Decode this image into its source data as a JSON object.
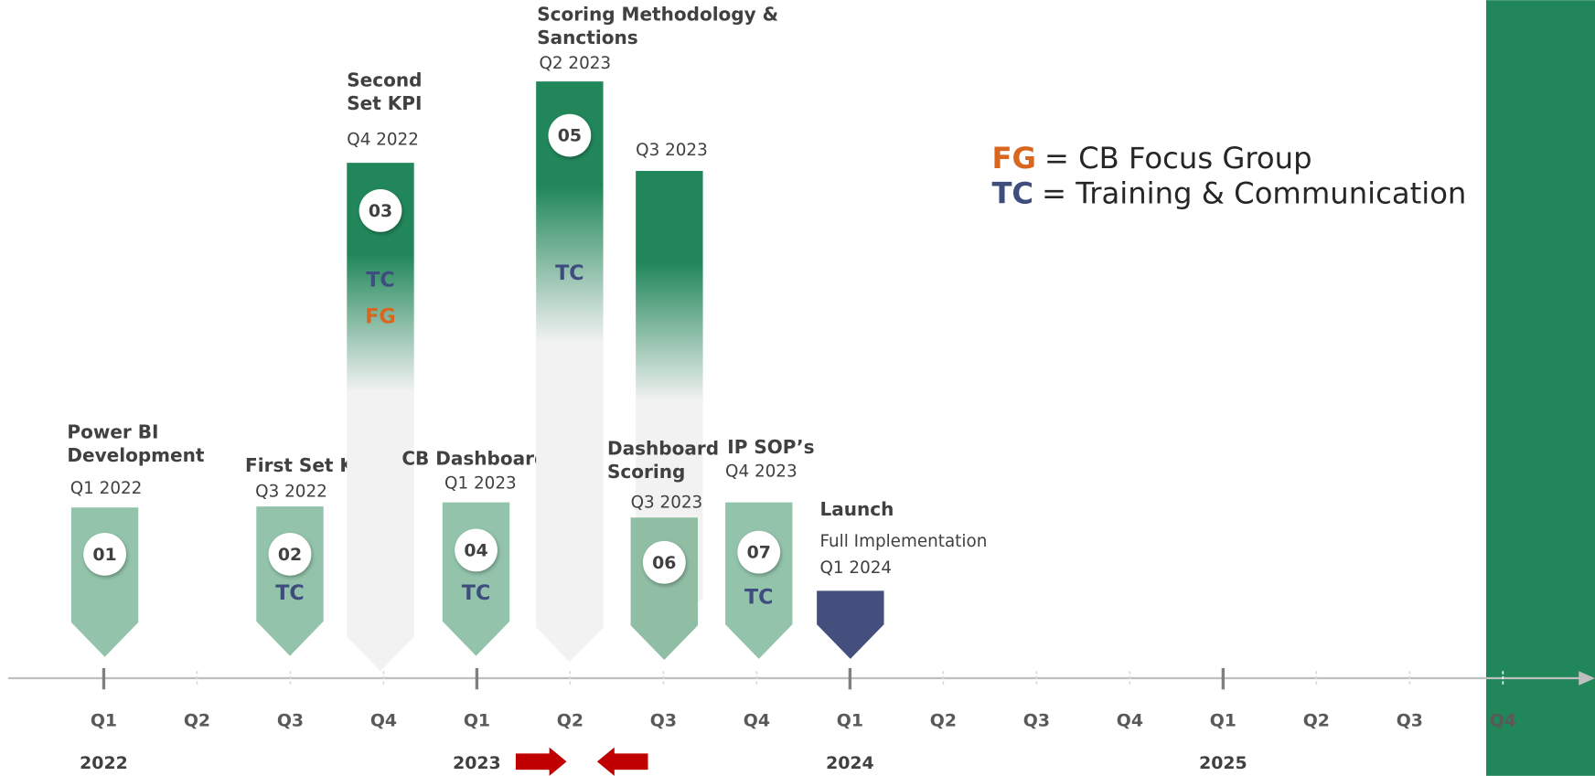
{
  "milestones": [
    {
      "number": "01",
      "title": [
        "Power BI",
        "Development"
      ],
      "date": "Q1 2022",
      "tags": []
    },
    {
      "number": "02",
      "title": [
        "First Set KPI"
      ],
      "date": "Q3 2022",
      "tags": [
        "TC"
      ]
    },
    {
      "number": "03",
      "title": [
        "Second",
        "Set KPI"
      ],
      "date": "Q4 2022",
      "tags": [
        "TC",
        "FG"
      ]
    },
    {
      "number": "04",
      "title": [
        "CB Dashboards"
      ],
      "date": "Q1 2023",
      "tags": [
        "TC"
      ]
    },
    {
      "number": "05",
      "title": [
        "Scoring Methodology &",
        "Sanctions"
      ],
      "date": "Q2 2023",
      "tags": [
        "TC"
      ]
    },
    {
      "date": "Q3 2023",
      "tags": []
    },
    {
      "number": "06",
      "title": [
        "Dashboard",
        "Scoring"
      ],
      "date": "Q3 2023",
      "tags": []
    },
    {
      "number": "07",
      "title": [
        "IP SOP’s"
      ],
      "date": "Q4 2023",
      "tags": [
        "TC"
      ]
    },
    {
      "title": [
        "Launch"
      ],
      "subtitle": "Full Implementation",
      "date": "Q1 2024",
      "tags": []
    }
  ],
  "quarters": [
    "Q1",
    "Q2",
    "Q3",
    "Q4",
    "Q1",
    "Q2",
    "Q3",
    "Q4",
    "Q1",
    "Q2",
    "Q3",
    "Q4",
    "Q1",
    "Q2",
    "Q3",
    "Q4"
  ],
  "years": [
    "2022",
    "2023",
    "2024",
    "2025"
  ],
  "legend": [
    {
      "abbr": "FG",
      "text": "= CB Focus Group"
    },
    {
      "abbr": "TC",
      "text": "= Training & Communication"
    }
  ]
}
